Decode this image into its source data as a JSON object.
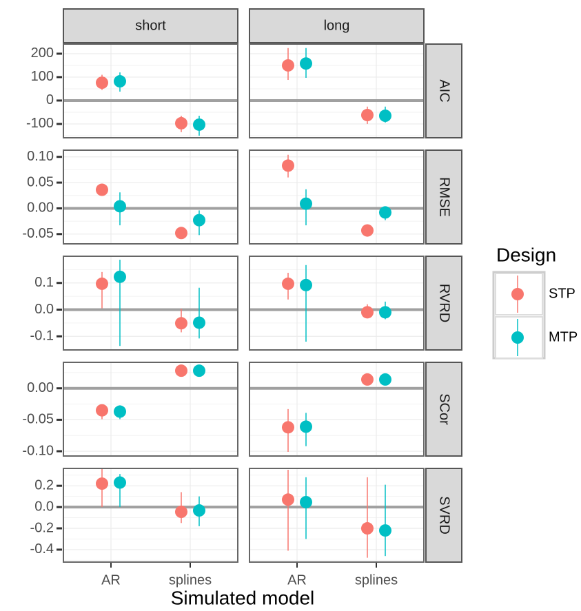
{
  "chart_data": {
    "type": "pointrange",
    "x_label": "Simulated model",
    "categories": [
      "AR",
      "splines"
    ],
    "facet_columns": [
      "short",
      "long"
    ],
    "legend_title": "Design",
    "legend_position": "right",
    "grid": true,
    "reference_line": 0,
    "series": [
      {
        "name": "STP",
        "color": "#F8766D"
      },
      {
        "name": "MTP",
        "color": "#00BFC4"
      }
    ],
    "rows": [
      {
        "label": "AIC",
        "ylim": [
          -159,
          241
        ],
        "yticks": [
          -100,
          0,
          100,
          200
        ],
        "panels": [
          {
            "series": [
              {
                "values": [
                  76,
                  -97
                ],
                "lower": [
                  45,
                  -135
                ],
                "upper": [
                  110,
                  -65
                ]
              },
              {
                "values": [
                  82,
                  -103
                ],
                "lower": [
                  38,
                  -150
                ],
                "upper": [
                  120,
                  -65
                ]
              }
            ]
          },
          {
            "series": [
              {
                "values": [
                  150,
                  -62
                ],
                "lower": [
                  88,
                  -100
                ],
                "upper": [
                  224,
                  -26
                ]
              },
              {
                "values": [
                  158,
                  -65
                ],
                "lower": [
                  97,
                  -94
                ],
                "upper": [
                  224,
                  -26
                ]
              }
            ]
          }
        ]
      },
      {
        "label": "RMSE",
        "ylim": [
          -0.069,
          0.113
        ],
        "yticks": [
          -0.05,
          {
            "value": 0,
            "label": "0.00"
          },
          0.05,
          {
            "value": 0.1,
            "label": "0.10"
          }
        ],
        "panels": [
          {
            "series": [
              {
                "values": [
                  0.036,
                  -0.048
                ],
                "lower": [
                  0.027,
                  -0.059
                ],
                "upper": [
                  0.047,
                  -0.04
                ]
              },
              {
                "values": [
                  0.004,
                  -0.023
                ],
                "lower": [
                  -0.033,
                  -0.052
                ],
                "upper": [
                  0.031,
                  -0.004
                ]
              }
            ]
          },
          {
            "series": [
              {
                "values": [
                  0.083,
                  -0.043
                ],
                "lower": [
                  0.06,
                  -0.055
                ],
                "upper": [
                  0.104,
                  -0.031
                ]
              },
              {
                "values": [
                  0.009,
                  -0.008
                ],
                "lower": [
                  -0.033,
                  -0.023
                ],
                "upper": [
                  0.037,
                  0.004
                ]
              }
            ]
          }
        ]
      },
      {
        "label": "RVRD",
        "ylim": [
          -0.151,
          0.2
        ],
        "yticks": [
          -0.1,
          {
            "value": 0,
            "label": "0.0"
          },
          0.1
        ],
        "panels": [
          {
            "series": [
              {
                "values": [
                  0.097,
                  -0.051
                ],
                "lower": [
                  0.005,
                  -0.085
                ],
                "upper": [
                  0.141,
                  0.003
                ]
              },
              {
                "values": [
                  0.123,
                  -0.049
                ],
                "lower": [
                  -0.136,
                  -0.108
                ],
                "upper": [
                  0.187,
                  0.082
                ]
              }
            ]
          },
          {
            "series": [
              {
                "values": [
                  0.097,
                  -0.01
                ],
                "lower": [
                  0.038,
                  -0.03
                ],
                "upper": [
                  0.138,
                  0.02
                ]
              },
              {
                "values": [
                  0.092,
                  -0.01
                ],
                "lower": [
                  -0.12,
                  -0.036
                ],
                "upper": [
                  0.167,
                  0.03
                ]
              }
            ]
          }
        ]
      },
      {
        "label": "SCor",
        "ylim": [
          -0.1076,
          0.0413
        ],
        "yticks": [
          {
            "value": -0.1,
            "label": "-0.10"
          },
          -0.05,
          {
            "value": 0,
            "label": "0.00"
          }
        ],
        "panels": [
          {
            "series": [
              {
                "values": [
                  -0.035,
                  0.028
                ],
                "lower": [
                  -0.049,
                  0.026
                ],
                "upper": [
                  -0.026,
                  0.03
                ]
              },
              {
                "values": [
                  -0.037,
                  0.028
                ],
                "lower": [
                  -0.049,
                  0.026
                ],
                "upper": [
                  -0.027,
                  0.03
                ]
              }
            ]
          },
          {
            "series": [
              {
                "values": [
                  -0.062,
                  0.014
                ],
                "lower": [
                  -0.101,
                  0.012
                ],
                "upper": [
                  -0.033,
                  0.016
                ]
              },
              {
                "values": [
                  -0.061,
                  0.014
                ],
                "lower": [
                  -0.092,
                  0.012
                ],
                "upper": [
                  -0.039,
                  0.016
                ]
              }
            ]
          }
        ]
      },
      {
        "label": "SVRD",
        "ylim": [
          -0.517,
          0.363
        ],
        "yticks": [
          -0.4,
          -0.2,
          {
            "value": 0,
            "label": "0.0"
          },
          0.2
        ],
        "panels": [
          {
            "series": [
              {
                "values": [
                  0.22,
                  -0.045
                ],
                "lower": [
                  0,
                  -0.15
                ],
                "upper": [
                  0.36,
                  0.14
                ]
              },
              {
                "values": [
                  0.23,
                  -0.032
                ],
                "lower": [
                  0,
                  -0.18
                ],
                "upper": [
                  0.31,
                  0.1
                ]
              }
            ]
          },
          {
            "series": [
              {
                "values": [
                  0.07,
                  -0.2
                ],
                "lower": [
                  -0.41,
                  -0.476
                ],
                "upper": [
                  0.35,
                  0.28
                ]
              },
              {
                "values": [
                  0.046,
                  -0.22
                ],
                "lower": [
                  -0.3,
                  -0.46
                ],
                "upper": [
                  0.28,
                  0.21
                ]
              }
            ]
          }
        ]
      }
    ]
  }
}
